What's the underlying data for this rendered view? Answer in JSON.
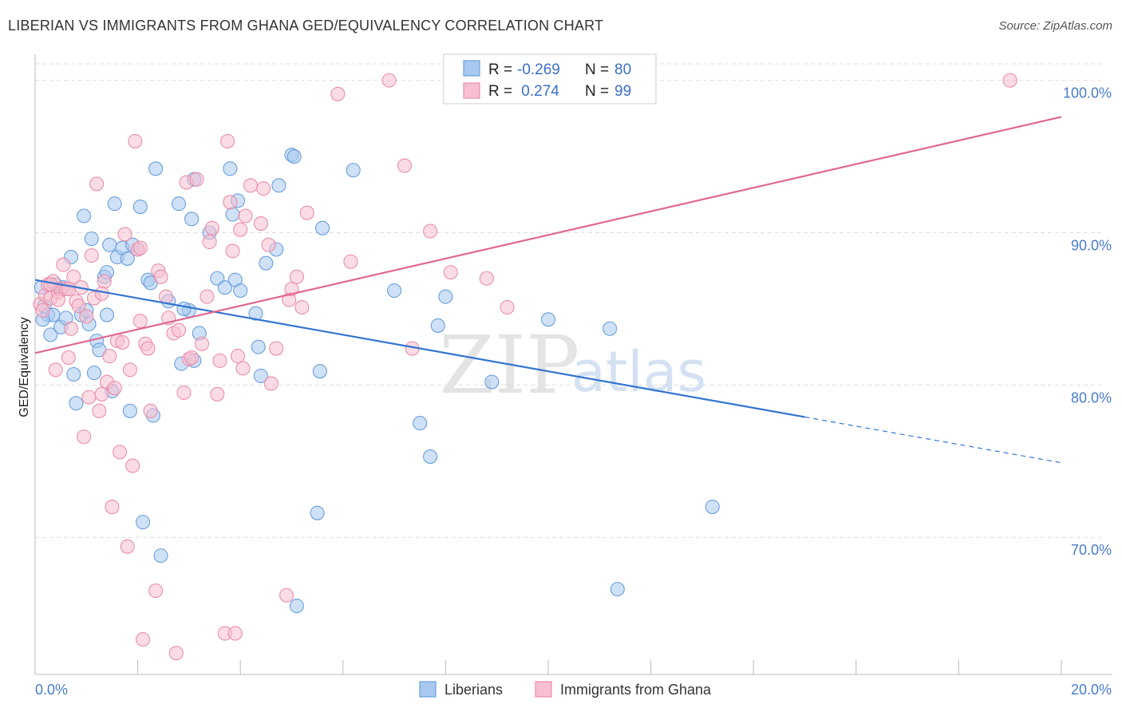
{
  "header": {
    "title": "LIBERIAN VS IMMIGRANTS FROM GHANA GED/EQUIVALENCY CORRELATION CHART",
    "source": "Source: ZipAtlas.com"
  },
  "legend_top": {
    "rows": [
      {
        "r_label": "R =",
        "r_value": "-0.269",
        "n_label": "N =",
        "n_value": "80"
      },
      {
        "r_label": "R =",
        "r_value": " 0.274",
        "n_label": "N =",
        "n_value": "99"
      }
    ]
  },
  "legend_bottom": {
    "items": [
      {
        "label": "Liberians"
      },
      {
        "label": "Immigrants from Ghana"
      }
    ]
  },
  "watermark": {
    "zip": "ZIP",
    "atlas": "atlas"
  },
  "colors": {
    "blue_fill": "#a8c8f0",
    "blue_stroke": "#6a9fdc",
    "blue_line": "#3274d0",
    "pink_fill": "#f7bfd0",
    "pink_stroke": "#ea8eab",
    "pink_line": "#e06890",
    "tick_text": "#4a7cc9",
    "grid": "#dddddd"
  },
  "chart_data": {
    "type": "scatter",
    "title": "LIBERIAN VS IMMIGRANTS FROM GHANA GED/EQUIVALENCY CORRELATION CHART",
    "xlabel": "",
    "ylabel": "GED/Equivalency",
    "xlim": [
      0,
      20
    ],
    "ylim": [
      61,
      101.5
    ],
    "x_ticks": [
      {
        "value": 0,
        "label": "0.0%"
      },
      {
        "value": 20,
        "label": "20.0%"
      }
    ],
    "y_ticks": [
      {
        "value": 70,
        "label": "70.0%"
      },
      {
        "value": 80,
        "label": "80.0%"
      },
      {
        "value": 90,
        "label": "90.0%"
      },
      {
        "value": 100,
        "label": "100.0%"
      }
    ],
    "grid": true,
    "legend_placement": "top-center",
    "series": [
      {
        "name": "Liberians",
        "R": -0.269,
        "N": 80,
        "trend": {
          "x0": 0,
          "y0": 86.9,
          "x1": 15,
          "y1": 77.9,
          "dashed_to_x": 20,
          "dashed_to_y": 74.9
        },
        "points": [
          [
            0.12,
            86.4
          ],
          [
            0.18,
            85.2
          ],
          [
            0.25,
            84.6
          ],
          [
            0.3,
            83.3
          ],
          [
            0.35,
            84.6
          ],
          [
            0.4,
            86.6
          ],
          [
            0.5,
            83.8
          ],
          [
            0.55,
            86.4
          ],
          [
            0.6,
            84.4
          ],
          [
            0.7,
            88.4
          ],
          [
            0.75,
            80.7
          ],
          [
            0.8,
            78.8
          ],
          [
            0.9,
            84.6
          ],
          [
            0.95,
            91.1
          ],
          [
            1.0,
            84.9
          ],
          [
            1.05,
            84.0
          ],
          [
            1.1,
            89.6
          ],
          [
            1.15,
            80.8
          ],
          [
            1.2,
            82.9
          ],
          [
            1.25,
            82.3
          ],
          [
            1.35,
            87.1
          ],
          [
            1.4,
            87.4
          ],
          [
            1.45,
            89.2
          ],
          [
            1.5,
            79.6
          ],
          [
            1.55,
            91.9
          ],
          [
            1.6,
            88.4
          ],
          [
            1.7,
            89.0
          ],
          [
            1.8,
            88.3
          ],
          [
            1.85,
            78.3
          ],
          [
            1.9,
            89.2
          ],
          [
            2.0,
            88.9
          ],
          [
            2.05,
            91.7
          ],
          [
            2.1,
            71.0
          ],
          [
            2.2,
            86.9
          ],
          [
            2.25,
            86.7
          ],
          [
            2.3,
            78.0
          ],
          [
            2.35,
            94.2
          ],
          [
            2.45,
            68.8
          ],
          [
            2.6,
            85.5
          ],
          [
            2.8,
            91.9
          ],
          [
            2.85,
            81.4
          ],
          [
            3.0,
            84.9
          ],
          [
            3.05,
            90.9
          ],
          [
            3.1,
            81.6
          ],
          [
            3.1,
            93.5
          ],
          [
            3.2,
            83.4
          ],
          [
            3.4,
            90.0
          ],
          [
            3.55,
            87.0
          ],
          [
            3.7,
            86.4
          ],
          [
            3.8,
            94.2
          ],
          [
            3.85,
            91.2
          ],
          [
            3.9,
            86.9
          ],
          [
            3.95,
            92.1
          ],
          [
            4.0,
            86.2
          ],
          [
            4.3,
            84.7
          ],
          [
            4.35,
            82.5
          ],
          [
            4.4,
            80.6
          ],
          [
            4.5,
            88.0
          ],
          [
            4.7,
            88.9
          ],
          [
            4.75,
            93.1
          ],
          [
            5.0,
            95.1
          ],
          [
            5.05,
            95.0
          ],
          [
            5.1,
            65.5
          ],
          [
            5.5,
            71.6
          ],
          [
            5.55,
            80.9
          ],
          [
            5.6,
            90.3
          ],
          [
            6.2,
            94.1
          ],
          [
            7.0,
            86.2
          ],
          [
            7.5,
            77.5
          ],
          [
            7.7,
            75.3
          ],
          [
            7.85,
            83.9
          ],
          [
            8.0,
            85.8
          ],
          [
            8.9,
            80.2
          ],
          [
            10.0,
            84.3
          ],
          [
            11.2,
            83.7
          ],
          [
            11.35,
            66.6
          ],
          [
            13.2,
            72.0
          ],
          [
            0.15,
            84.3
          ],
          [
            1.4,
            84.6
          ],
          [
            2.9,
            85.0
          ]
        ]
      },
      {
        "name": "Immigrants from Ghana",
        "R": 0.274,
        "N": 99,
        "trend": {
          "x0": 0,
          "y0": 82.1,
          "x1": 20,
          "y1": 97.6
        },
        "points": [
          [
            0.1,
            85.3
          ],
          [
            0.15,
            84.9
          ],
          [
            0.2,
            85.9
          ],
          [
            0.25,
            86.6
          ],
          [
            0.3,
            85.7
          ],
          [
            0.35,
            86.8
          ],
          [
            0.4,
            81.0
          ],
          [
            0.45,
            86.1
          ],
          [
            0.5,
            86.3
          ],
          [
            0.55,
            87.9
          ],
          [
            0.6,
            86.3
          ],
          [
            0.65,
            81.8
          ],
          [
            0.7,
            83.7
          ],
          [
            0.75,
            87.1
          ],
          [
            0.8,
            85.5
          ],
          [
            0.85,
            85.2
          ],
          [
            0.9,
            86.4
          ],
          [
            0.95,
            76.6
          ],
          [
            1.0,
            84.5
          ],
          [
            1.05,
            79.2
          ],
          [
            1.1,
            88.5
          ],
          [
            1.15,
            85.7
          ],
          [
            1.2,
            93.2
          ],
          [
            1.25,
            78.3
          ],
          [
            1.3,
            79.4
          ],
          [
            1.35,
            86.8
          ],
          [
            1.4,
            80.2
          ],
          [
            1.45,
            81.9
          ],
          [
            1.5,
            72.0
          ],
          [
            1.55,
            79.8
          ],
          [
            1.6,
            82.9
          ],
          [
            1.65,
            75.6
          ],
          [
            1.7,
            82.8
          ],
          [
            1.75,
            89.9
          ],
          [
            1.8,
            69.4
          ],
          [
            1.85,
            81.0
          ],
          [
            1.9,
            74.7
          ],
          [
            1.95,
            96.0
          ],
          [
            2.0,
            88.9
          ],
          [
            2.05,
            84.2
          ],
          [
            2.1,
            63.3
          ],
          [
            2.15,
            82.7
          ],
          [
            2.2,
            82.4
          ],
          [
            2.25,
            78.3
          ],
          [
            2.35,
            66.5
          ],
          [
            2.4,
            87.5
          ],
          [
            2.45,
            87.1
          ],
          [
            2.55,
            85.8
          ],
          [
            2.6,
            84.4
          ],
          [
            2.7,
            83.4
          ],
          [
            2.75,
            62.4
          ],
          [
            2.8,
            83.6
          ],
          [
            2.9,
            79.5
          ],
          [
            2.95,
            93.3
          ],
          [
            3.0,
            81.7
          ],
          [
            3.05,
            81.8
          ],
          [
            3.15,
            93.5
          ],
          [
            3.25,
            82.7
          ],
          [
            3.35,
            85.8
          ],
          [
            3.4,
            89.4
          ],
          [
            3.45,
            90.3
          ],
          [
            3.55,
            79.4
          ],
          [
            3.6,
            81.6
          ],
          [
            3.7,
            63.7
          ],
          [
            3.75,
            96.0
          ],
          [
            3.8,
            92.0
          ],
          [
            3.85,
            88.8
          ],
          [
            3.9,
            63.7
          ],
          [
            3.95,
            81.9
          ],
          [
            4.0,
            90.2
          ],
          [
            4.05,
            81.1
          ],
          [
            4.1,
            91.1
          ],
          [
            4.2,
            93.1
          ],
          [
            4.4,
            90.6
          ],
          [
            4.45,
            92.9
          ],
          [
            4.55,
            89.2
          ],
          [
            4.6,
            80.1
          ],
          [
            4.7,
            82.4
          ],
          [
            4.9,
            66.2
          ],
          [
            4.95,
            85.6
          ],
          [
            5.0,
            86.3
          ],
          [
            5.1,
            87.1
          ],
          [
            5.2,
            85.1
          ],
          [
            5.3,
            91.3
          ],
          [
            5.9,
            99.1
          ],
          [
            6.15,
            88.1
          ],
          [
            6.9,
            100.0
          ],
          [
            7.2,
            94.4
          ],
          [
            7.35,
            82.4
          ],
          [
            7.7,
            90.1
          ],
          [
            8.1,
            87.4
          ],
          [
            8.8,
            87.0
          ],
          [
            9.2,
            85.1
          ],
          [
            0.3,
            86.6
          ],
          [
            0.45,
            85.6
          ],
          [
            1.3,
            86.0
          ],
          [
            0.65,
            86.3
          ],
          [
            2.05,
            89.0
          ],
          [
            19.0,
            100.0
          ]
        ]
      }
    ]
  }
}
